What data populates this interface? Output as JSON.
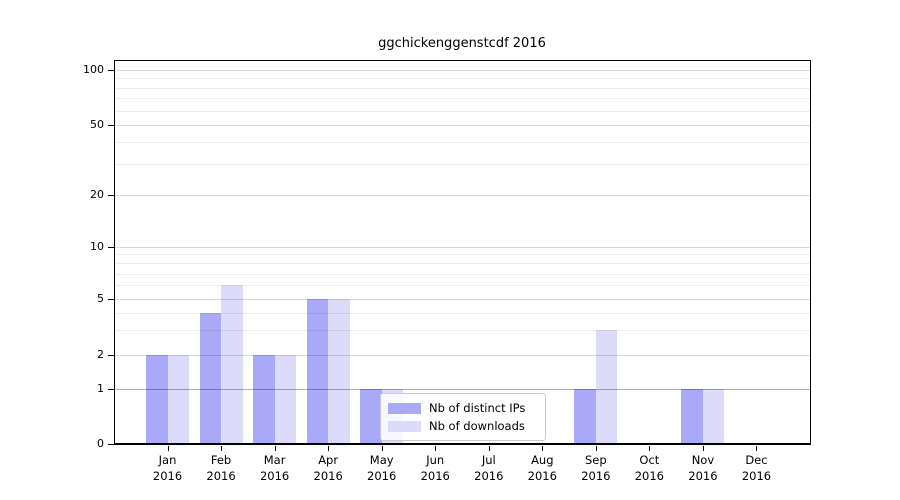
{
  "title": "ggchickenggenstcdf 2016",
  "colors": {
    "bar_distinct_ips": "#a9a9f7",
    "bar_downloads": "#dcdcfa",
    "grid_major": "#d9d9d9",
    "grid_minor": "#ededed",
    "grid_line_at_1": "#b3b3b3",
    "axis": "#000000",
    "legend_border": "#cccccc",
    "background": "#ffffff"
  },
  "legend": {
    "items": [
      {
        "label": "Nb of distinct IPs",
        "color_key": "bar_distinct_ips"
      },
      {
        "label": "Nb of downloads",
        "color_key": "bar_downloads"
      }
    ]
  },
  "chart_data": {
    "type": "bar",
    "title": "ggchickenggenstcdf 2016",
    "categories": [
      "Jan",
      "Feb",
      "Mar",
      "Apr",
      "May",
      "Jun",
      "Jul",
      "Aug",
      "Sep",
      "Oct",
      "Nov",
      "Dec"
    ],
    "x_year_label": "2016",
    "series": [
      {
        "name": "Nb of distinct IPs",
        "color_key": "bar_distinct_ips",
        "values": [
          2,
          4,
          2,
          5,
          1,
          0,
          0,
          0,
          1,
          0,
          1,
          0
        ]
      },
      {
        "name": "Nb of downloads",
        "color_key": "bar_downloads",
        "values": [
          2,
          6,
          2,
          5,
          1,
          0,
          0,
          0,
          3,
          0,
          1,
          0
        ]
      }
    ],
    "ylabel": "",
    "xlabel": "",
    "yticks": [
      0,
      1,
      2,
      5,
      10,
      20,
      50,
      100
    ],
    "yaxis_scale": "log (zero clamped at baseline)",
    "ylim": [
      0,
      100
    ],
    "grid": "on",
    "legend_position": "inside lower-center (over May–Jun)"
  }
}
